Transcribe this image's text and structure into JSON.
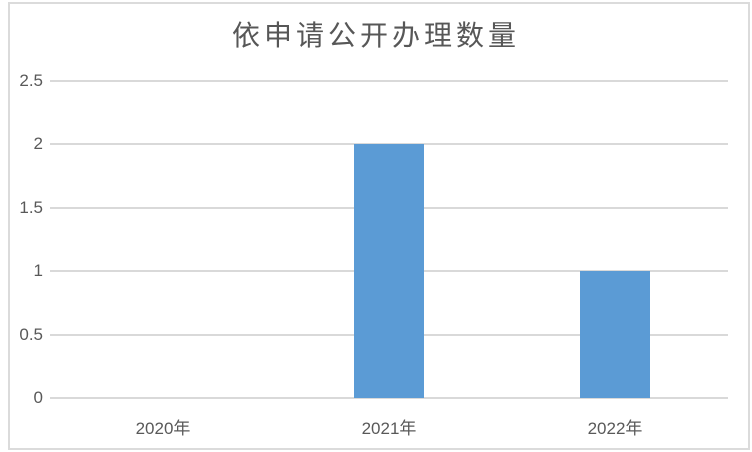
{
  "chart_data": {
    "type": "bar",
    "title": "依申请公开办理数量",
    "categories": [
      "2020年",
      "2021年",
      "2022年"
    ],
    "values": [
      0,
      2,
      1
    ],
    "xlabel": "",
    "ylabel": "",
    "ylim": [
      0,
      2.5
    ],
    "yticks": [
      0,
      0.5,
      1,
      1.5,
      2,
      2.5
    ],
    "ytick_labels": [
      "0",
      "0.5",
      "1",
      "1.5",
      "2",
      "2.5"
    ],
    "grid": true,
    "legend": false,
    "colors": {
      "bar": "#5B9BD5",
      "gridline": "#D9D9D9",
      "axis_line": "#D9D9D9",
      "tick_text": "#595959",
      "title_text": "#575757",
      "border": "#DBDBDB",
      "background": "#FFFFFF"
    }
  }
}
